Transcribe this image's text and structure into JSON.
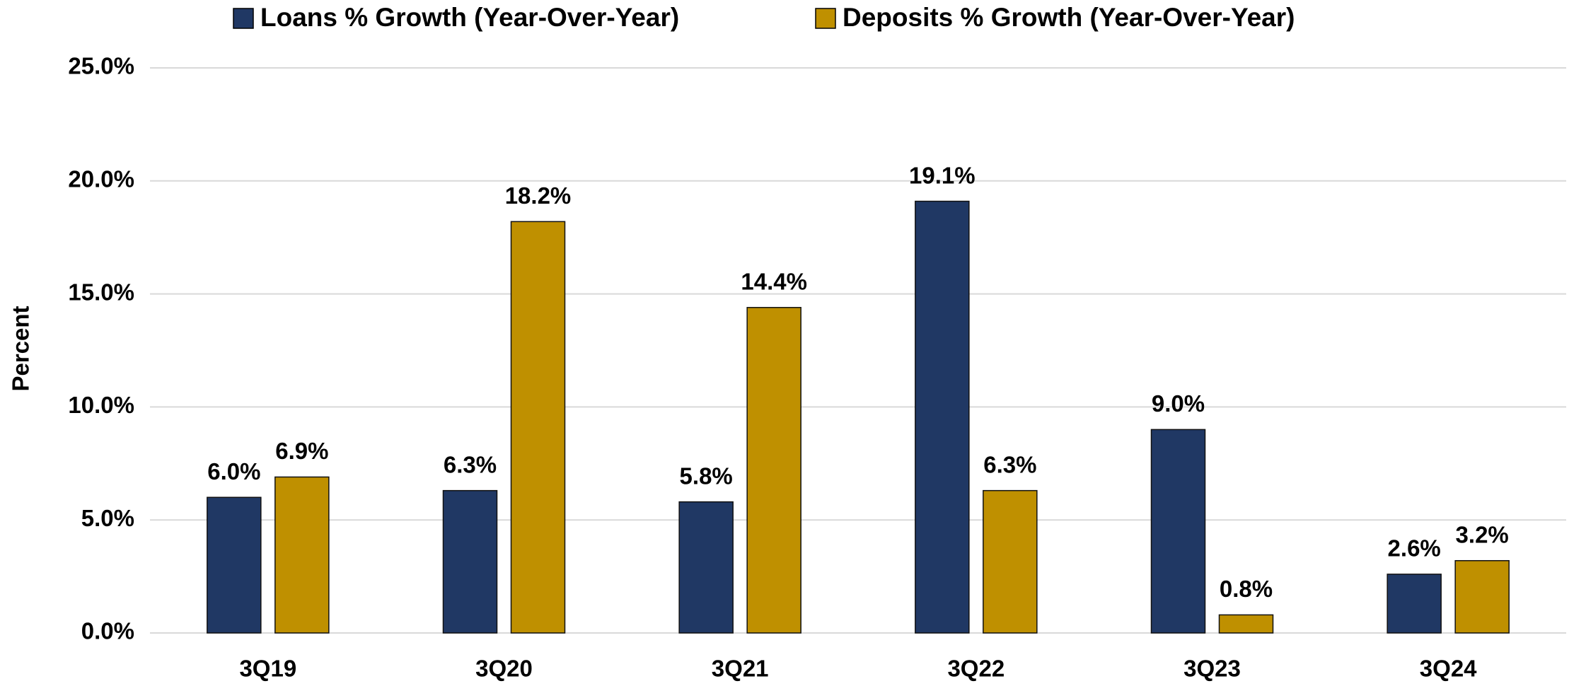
{
  "chart_data": {
    "type": "bar",
    "y_axis_label": "Percent",
    "categories": [
      "3Q19",
      "3Q20",
      "3Q21",
      "3Q22",
      "3Q23",
      "3Q24"
    ],
    "series": [
      {
        "name": "Loans % Growth (Year-Over-Year)",
        "color": "#203864",
        "values": [
          6.0,
          6.3,
          5.8,
          19.1,
          9.0,
          2.6
        ],
        "value_labels": [
          "6.0%",
          "6.3%",
          "5.8%",
          "19.1%",
          "9.0%",
          "2.6%"
        ]
      },
      {
        "name": "Deposits % Growth (Year-Over-Year)",
        "color": "#bf9000",
        "values": [
          6.9,
          18.2,
          14.4,
          6.3,
          0.8,
          3.2
        ],
        "value_labels": [
          "6.9%",
          "18.2%",
          "14.4%",
          "6.3%",
          "0.8%",
          "3.2%"
        ]
      }
    ],
    "ylim": [
      0,
      25
    ],
    "yticks": [
      {
        "value": 0,
        "label": "0.0%"
      },
      {
        "value": 5,
        "label": "5.0%"
      },
      {
        "value": 10,
        "label": "10.0%"
      },
      {
        "value": 15,
        "label": "15.0%"
      },
      {
        "value": 20,
        "label": "20.0%"
      },
      {
        "value": 25,
        "label": "25.0%"
      }
    ],
    "grid": true,
    "legend": "top"
  }
}
